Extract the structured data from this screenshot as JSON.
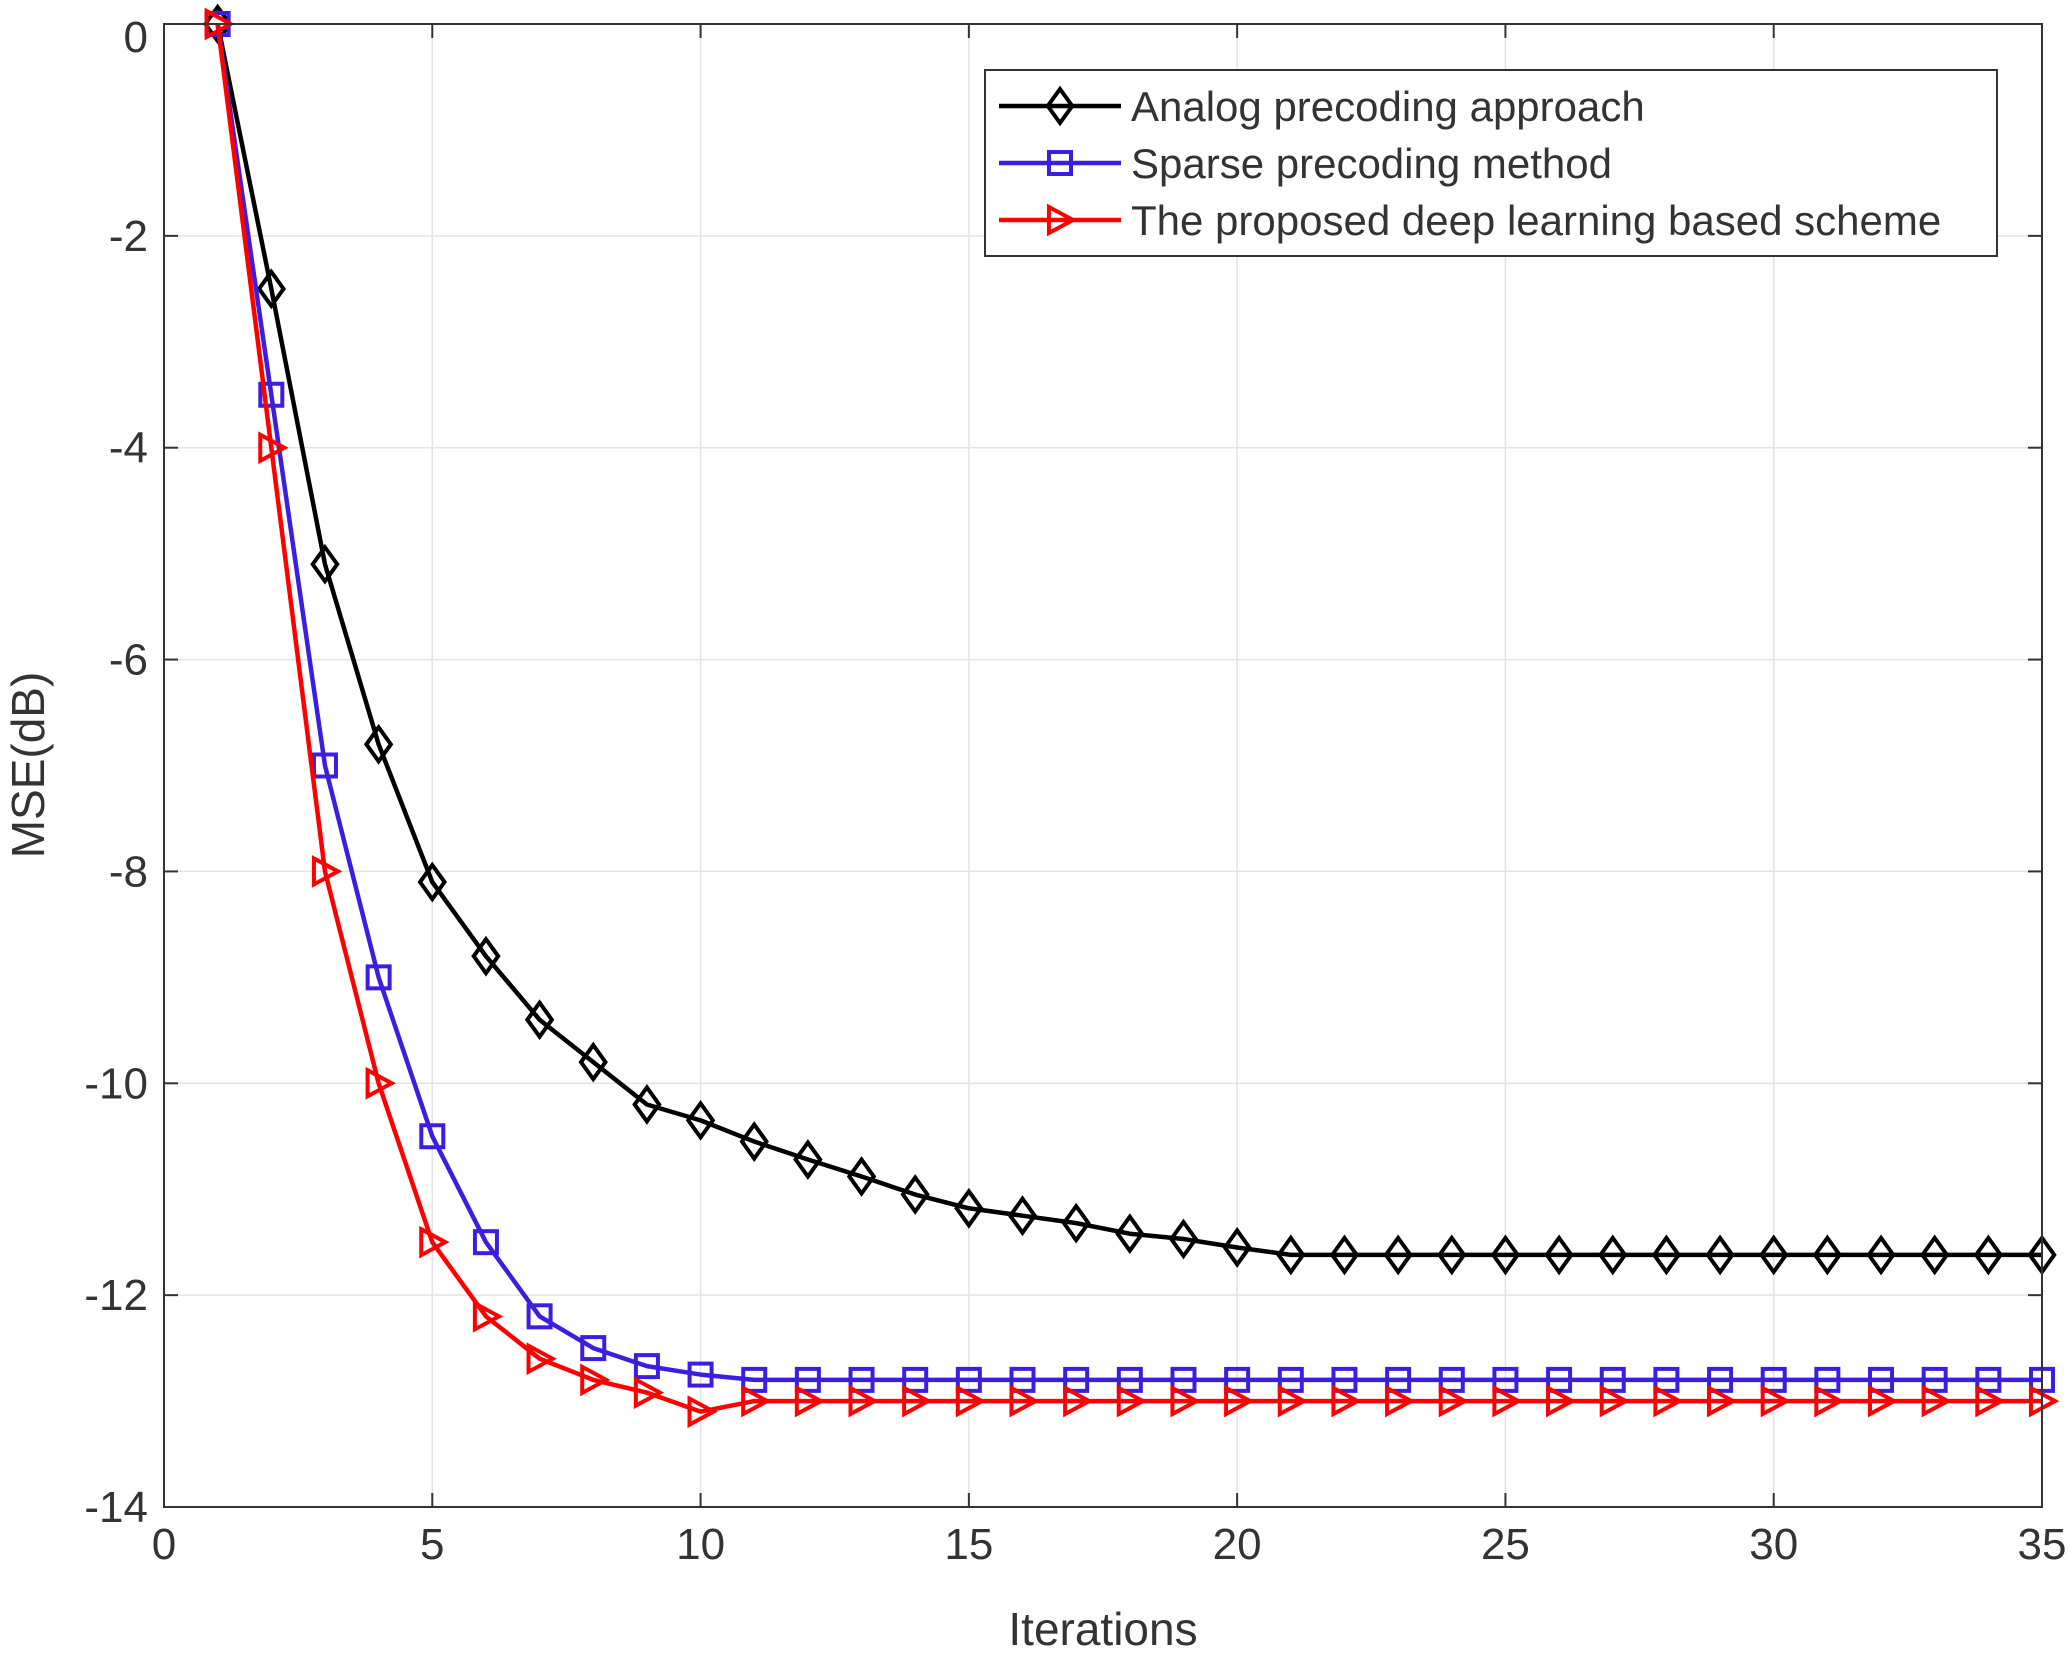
{
  "chart_data": {
    "type": "line",
    "title": "",
    "xlabel": "Iterations",
    "ylabel": "MSE(dB)",
    "xlim": [
      0,
      35
    ],
    "ylim": [
      -14,
      0
    ],
    "xticks": [
      0,
      5,
      10,
      15,
      20,
      25,
      30,
      35
    ],
    "xtick_labels": [
      "0",
      "5",
      "10",
      "15",
      "20",
      "25",
      "30",
      "35"
    ],
    "yticks": [
      0,
      -2,
      -4,
      -6,
      -8,
      -10,
      -12,
      -14
    ],
    "ytick_labels": [
      "0",
      "-2",
      "-4",
      "-6",
      "-8",
      "-10",
      "-12",
      "-14"
    ],
    "grid": true,
    "legend_position": "top-right",
    "x": [
      1,
      2,
      3,
      4,
      5,
      6,
      7,
      8,
      9,
      10,
      11,
      12,
      13,
      14,
      15,
      16,
      17,
      18,
      19,
      20,
      21,
      22,
      23,
      24,
      25,
      26,
      27,
      28,
      29,
      30,
      31,
      32,
      33,
      34,
      35
    ],
    "series": [
      {
        "name": "Analog precoding approach",
        "color": "#000000",
        "marker": "diamond",
        "values": [
          0,
          -2.5,
          -5.1,
          -6.8,
          -8.1,
          -8.8,
          -9.4,
          -9.8,
          -10.2,
          -10.35,
          -10.55,
          -10.72,
          -10.88,
          -11.05,
          -11.18,
          -11.25,
          -11.32,
          -11.42,
          -11.47,
          -11.55,
          -11.62,
          -11.62,
          -11.62,
          -11.62,
          -11.62,
          -11.62,
          -11.62,
          -11.62,
          -11.62,
          -11.62,
          -11.62,
          -11.62,
          -11.62,
          -11.62,
          -11.62
        ]
      },
      {
        "name": "Sparse precoding method",
        "color": "#3b1fe0",
        "marker": "square",
        "values": [
          0,
          -3.5,
          -7.0,
          -9.0,
          -10.5,
          -11.5,
          -12.2,
          -12.5,
          -12.67,
          -12.75,
          -12.8,
          -12.8,
          -12.8,
          -12.8,
          -12.8,
          -12.8,
          -12.8,
          -12.8,
          -12.8,
          -12.8,
          -12.8,
          -12.8,
          -12.8,
          -12.8,
          -12.8,
          -12.8,
          -12.8,
          -12.8,
          -12.8,
          -12.8,
          -12.8,
          -12.8,
          -12.8,
          -12.8,
          -12.8
        ]
      },
      {
        "name": "The proposed deep learning based scheme",
        "color": "#ff0000",
        "marker": "triangle-right",
        "values": [
          0,
          -4.0,
          -8.0,
          -10.0,
          -11.5,
          -12.2,
          -12.6,
          -12.8,
          -12.92,
          -13.1,
          -13.0,
          -13.0,
          -13.0,
          -13.0,
          -13.0,
          -13.0,
          -13.0,
          -13.0,
          -13.0,
          -13.0,
          -13.0,
          -13.0,
          -13.0,
          -13.0,
          -13.0,
          -13.0,
          -13.0,
          -13.0,
          -13.0,
          -13.0,
          -13.0,
          -13.0,
          -13.0,
          -13.0,
          -13.0
        ]
      }
    ]
  }
}
